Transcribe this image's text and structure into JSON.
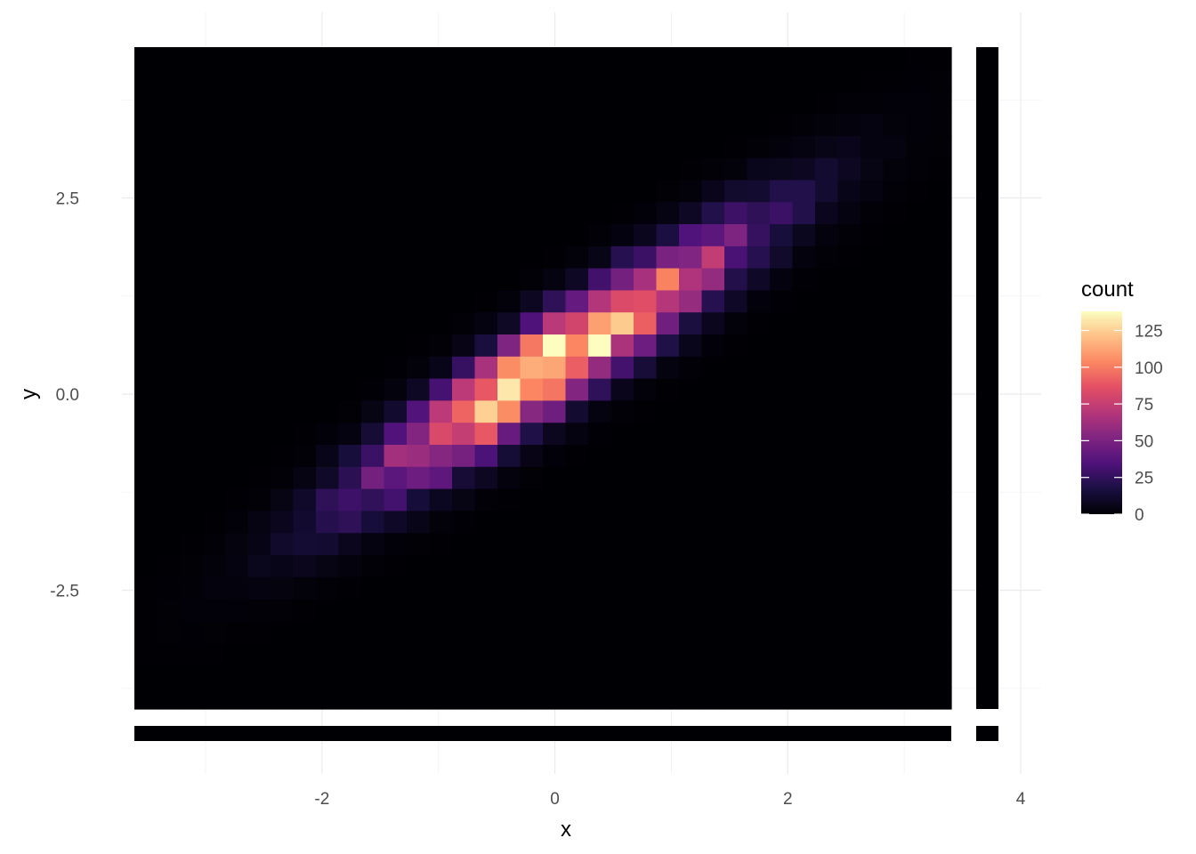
{
  "chart_data": {
    "type": "heatmap",
    "subtype": "2d-binned-histogram",
    "xlabel": "x",
    "ylabel": "y",
    "xlim": [
      -3.4,
      3.4
    ],
    "ylim": [
      -4.0,
      3.9
    ],
    "x_axis_range_with_margins": [
      -4.0,
      4.0
    ],
    "x_ticks": [
      -2,
      0,
      2,
      4
    ],
    "x_tick_labels": [
      "-2",
      "0",
      "2",
      "4"
    ],
    "y_ticks": [
      -2.5,
      0.0,
      2.5
    ],
    "y_tick_labels": [
      "-2.5",
      "0.0",
      "2.5"
    ],
    "grid": true,
    "bins_x": 36,
    "bins_y": 30,
    "approx_correlation": 0.93,
    "approx_peak": {
      "x": 0.5,
      "y": 0.55,
      "count": 138
    },
    "colorscale": "magma",
    "legend": {
      "title": "count",
      "position": "right",
      "min": 0,
      "max": 138,
      "ticks": [
        0,
        25,
        50,
        75,
        100,
        125
      ],
      "tick_labels": [
        "0",
        "25",
        "50",
        "75",
        "100",
        "125"
      ]
    },
    "marginal_strips": {
      "right": "near-zero count strip",
      "bottom": "near-zero count strip"
    }
  }
}
